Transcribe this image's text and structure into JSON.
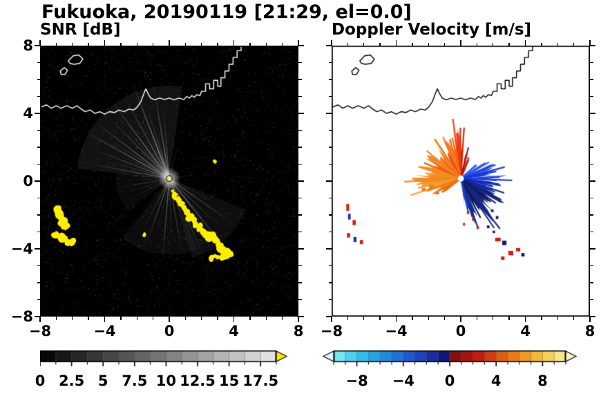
{
  "page": {
    "title": "Fukuoka, 20190119 [21:29, el=0.0]"
  },
  "axes": {
    "minor_step": 1,
    "xticks": {
      "values": [
        -8,
        -4,
        0,
        4,
        8
      ],
      "labels": [
        "−8",
        "−4",
        "0",
        "4",
        "8"
      ]
    },
    "yticks": {
      "values": [
        8,
        4,
        0,
        -4,
        -8
      ],
      "labels": [
        "8",
        "4",
        "0",
        "−4",
        "−8"
      ]
    }
  },
  "coastline": {
    "main": [
      [
        -8,
        4.35
      ],
      [
        -7.6,
        4.5
      ],
      [
        -7.3,
        4.3
      ],
      [
        -7,
        4.45
      ],
      [
        -6.7,
        4.3
      ],
      [
        -6.35,
        4.45
      ],
      [
        -6,
        4.3
      ],
      [
        -5.7,
        4.45
      ],
      [
        -5.45,
        4.25
      ],
      [
        -5.2,
        4.1
      ],
      [
        -4.9,
        4.2
      ],
      [
        -4.6,
        4
      ],
      [
        -4.3,
        4.1
      ],
      [
        -4,
        3.95
      ],
      [
        -3.7,
        4.1
      ],
      [
        -3.4,
        4.05
      ],
      [
        -3.1,
        4.2
      ],
      [
        -2.8,
        4.1
      ],
      [
        -2.5,
        4.25
      ],
      [
        -2.2,
        4.2
      ],
      [
        -2,
        4.35
      ],
      [
        -1.75,
        4.7
      ],
      [
        -1.6,
        5.1
      ],
      [
        -1.45,
        5.45
      ],
      [
        -1.3,
        5.15
      ],
      [
        -1.15,
        4.9
      ],
      [
        -0.9,
        4.8
      ],
      [
        -0.6,
        4.9
      ],
      [
        -0.3,
        4.82
      ],
      [
        0,
        4.9
      ],
      [
        0.3,
        4.8
      ],
      [
        0.6,
        4.9
      ],
      [
        0.9,
        4.82
      ],
      [
        1.1,
        5
      ],
      [
        1.25,
        4.9
      ],
      [
        1.4,
        5.05
      ],
      [
        1.55,
        4.95
      ],
      [
        1.7,
        5.1
      ],
      [
        1.9,
        5.05
      ],
      [
        2,
        5.3
      ],
      [
        2.25,
        5.3
      ],
      [
        2.25,
        5.75
      ],
      [
        2.5,
        5.75
      ],
      [
        2.5,
        5.45
      ],
      [
        2.75,
        5.45
      ],
      [
        2.75,
        5.95
      ],
      [
        3,
        5.95
      ],
      [
        3,
        5.6
      ],
      [
        3.2,
        5.6
      ],
      [
        3.2,
        6.1
      ],
      [
        3.45,
        6.1
      ],
      [
        3.45,
        6.5
      ],
      [
        3.7,
        6.5
      ],
      [
        3.7,
        6.9
      ],
      [
        3.95,
        6.9
      ],
      [
        3.95,
        7.3
      ],
      [
        4.2,
        7.3
      ],
      [
        4.2,
        7.7
      ],
      [
        4.45,
        7.7
      ],
      [
        4.45,
        8
      ]
    ],
    "islands": [
      [
        [
          -6.25,
          7.1
        ],
        [
          -5.95,
          7.4
        ],
        [
          -5.6,
          7.45
        ],
        [
          -5.35,
          7.2
        ],
        [
          -5.55,
          6.95
        ],
        [
          -5.9,
          6.9
        ],
        [
          -6.15,
          6.95
        ]
      ],
      [
        [
          -6.75,
          6.5
        ],
        [
          -6.5,
          6.7
        ],
        [
          -6.3,
          6.55
        ],
        [
          -6.45,
          6.3
        ],
        [
          -6.7,
          6.3
        ]
      ]
    ]
  },
  "chart_data": [
    {
      "id": "snr",
      "type": "heatmap",
      "title": "SNR [dB]",
      "xlabel": "",
      "ylabel": "",
      "xlim": [
        -8,
        8
      ],
      "ylim": [
        -8,
        8
      ],
      "background": "#000000",
      "coast_color": "#ffffff",
      "center": [
        0,
        0.15
      ],
      "colorbar": {
        "range": [
          0,
          18.75
        ],
        "segments": 15,
        "ticks": [
          0,
          2.5,
          5,
          7.5,
          10,
          12.5,
          15,
          17.5
        ],
        "tick_labels": [
          "0",
          "2.5",
          "5",
          "7.5",
          "10",
          "12.5",
          "15",
          "17.5"
        ],
        "minor_step": 1.25,
        "stops": [
          [
            0,
            "#000000"
          ],
          [
            1,
            "#e9e9e9"
          ]
        ],
        "over_arrow_color": "#ffe600"
      },
      "noise": {
        "seed": 1234,
        "count": 3000,
        "max_alpha": 0.3
      },
      "glow_wedges": [
        [
          128,
          46,
          5.6,
          0.1
        ],
        [
          196,
          22,
          3.2,
          0.06
        ],
        [
          262,
          30,
          4.6,
          0.07
        ],
        [
          312,
          26,
          5,
          0.08
        ]
      ],
      "rays": [
        [
          95,
          4.5,
          1.2,
          190,
          0.5
        ],
        [
          100,
          5.8,
          1.5,
          205,
          0.6
        ],
        [
          105,
          3.2,
          1,
          160,
          0.5
        ],
        [
          108,
          5,
          1.2,
          180,
          0.55
        ],
        [
          112,
          6.3,
          1.8,
          215,
          0.7
        ],
        [
          116,
          4,
          1,
          170,
          0.5
        ],
        [
          120,
          5.5,
          1.5,
          200,
          0.6
        ],
        [
          124,
          3.5,
          1,
          150,
          0.45
        ],
        [
          128,
          6,
          1.6,
          210,
          0.65
        ],
        [
          132,
          4.2,
          1.2,
          180,
          0.5
        ],
        [
          136,
          5.2,
          1.4,
          190,
          0.55
        ],
        [
          140,
          3,
          1,
          150,
          0.4
        ],
        [
          144,
          5.8,
          1.5,
          200,
          0.6
        ],
        [
          148,
          4.5,
          1.2,
          175,
          0.5
        ],
        [
          152,
          6.2,
          1.6,
          210,
          0.6
        ],
        [
          156,
          3.8,
          1,
          160,
          0.45
        ],
        [
          160,
          5,
          1.3,
          185,
          0.55
        ],
        [
          165,
          4.2,
          1.1,
          170,
          0.5
        ],
        [
          170,
          5.5,
          1.4,
          190,
          0.55
        ],
        [
          175,
          3.5,
          1,
          155,
          0.45
        ],
        [
          182,
          2.8,
          1,
          140,
          0.4
        ],
        [
          190,
          3.4,
          1.1,
          160,
          0.45
        ],
        [
          198,
          2.5,
          1,
          140,
          0.4
        ],
        [
          207,
          3,
          1,
          150,
          0.4
        ],
        [
          215,
          2.2,
          1,
          130,
          0.35
        ],
        [
          228,
          2,
          1,
          120,
          0.3
        ],
        [
          242,
          3.5,
          1.2,
          160,
          0.45
        ],
        [
          250,
          4.5,
          1.4,
          180,
          0.5
        ],
        [
          258,
          3,
          1,
          150,
          0.4
        ],
        [
          265,
          5,
          1.5,
          190,
          0.55
        ],
        [
          272,
          3.8,
          1.1,
          160,
          0.45
        ],
        [
          280,
          4.6,
          1.3,
          175,
          0.5
        ],
        [
          288,
          3.2,
          1,
          150,
          0.4
        ],
        [
          295,
          5.2,
          1.5,
          190,
          0.55
        ],
        [
          302,
          4,
          1.2,
          165,
          0.45
        ],
        [
          310,
          5.6,
          1.6,
          200,
          0.6
        ],
        [
          318,
          4.4,
          1.2,
          175,
          0.5
        ],
        [
          326,
          5,
          1.4,
          185,
          0.5
        ],
        [
          334,
          3,
          1,
          150,
          0.4
        ],
        [
          8,
          1.8,
          1,
          140,
          0.35
        ],
        [
          30,
          1.5,
          1,
          130,
          0.3
        ],
        [
          75,
          2.5,
          1,
          150,
          0.4
        ]
      ],
      "clutter": {
        "color": "#ffee00",
        "blobs": [
          [
            -6.9,
            -1.7,
            0.28
          ],
          [
            -6.75,
            -2.05,
            0.32
          ],
          [
            -6.55,
            -2.35,
            0.3
          ],
          [
            -6.45,
            -2.65,
            0.24
          ],
          [
            -6.8,
            -2.5,
            0.2
          ],
          [
            -7,
            -3.15,
            0.26
          ],
          [
            -6.65,
            -3.4,
            0.3
          ],
          [
            -6.3,
            -3.55,
            0.26
          ],
          [
            -5.95,
            -3.6,
            0.2
          ],
          [
            0.35,
            -0.85,
            0.18
          ],
          [
            0.55,
            -1.1,
            0.2
          ],
          [
            0.75,
            -1.35,
            0.22
          ],
          [
            0.95,
            -1.6,
            0.2
          ],
          [
            1.1,
            -1.85,
            0.22
          ],
          [
            1.3,
            -2.1,
            0.24
          ],
          [
            1.5,
            -2.3,
            0.2
          ],
          [
            1.65,
            -2.55,
            0.22
          ],
          [
            1.85,
            -2.75,
            0.26
          ],
          [
            2.1,
            -2.95,
            0.22
          ],
          [
            2.35,
            -3.1,
            0.24
          ],
          [
            2.6,
            -3.25,
            0.3
          ],
          [
            2.85,
            -3.45,
            0.26
          ],
          [
            3,
            -3.7,
            0.3
          ],
          [
            3.2,
            -3.95,
            0.28
          ],
          [
            3.45,
            -4.15,
            0.3
          ],
          [
            3.65,
            -4.35,
            0.26
          ],
          [
            3.3,
            -4.5,
            0.22
          ],
          [
            2.9,
            -4.45,
            0.2
          ],
          [
            2.55,
            -4.55,
            0.18
          ],
          [
            2.85,
            1.15,
            0.14
          ],
          [
            -1.55,
            -3.15,
            0.12
          ],
          [
            0.2,
            -0.6,
            0.1
          ]
        ]
      }
    },
    {
      "id": "doppler",
      "type": "heatmap",
      "title": "Doppler Velocity [m/s]",
      "xlabel": "",
      "ylabel": "",
      "xlim": [
        -8,
        8
      ],
      "ylim": [
        -8,
        8
      ],
      "background": "#ffffff",
      "coast_color": "#000000",
      "center": [
        0,
        0.15
      ],
      "colorbar": {
        "range": [
          -10,
          10
        ],
        "segments": 20,
        "ticks": [
          -8,
          -4,
          0,
          4,
          8
        ],
        "tick_labels": [
          "−8",
          "−4",
          "0",
          "4",
          "8"
        ],
        "minor_step": 1,
        "stops": [
          [
            0,
            "#8ceef2"
          ],
          [
            0.1,
            "#3cc8ec"
          ],
          [
            0.2,
            "#2098dc"
          ],
          [
            0.3,
            "#2264d2"
          ],
          [
            0.4,
            "#1c38b4"
          ],
          [
            0.475,
            "#121878"
          ],
          [
            0.5,
            "#6e1010"
          ],
          [
            0.55,
            "#941212"
          ],
          [
            0.625,
            "#c01c14"
          ],
          [
            0.7,
            "#d84e14"
          ],
          [
            0.8,
            "#ec8c1c"
          ],
          [
            0.9,
            "#f4c840"
          ],
          [
            1,
            "#f8f0a0"
          ]
        ],
        "under_arrow_color": "#dbfbfb",
        "over_arrow_color": "#fbf5c8"
      },
      "wedges": [
        [
          88,
          3,
          2.3,
          "#d92408"
        ],
        [
          95,
          4,
          2.7,
          "#f03c04"
        ],
        [
          102,
          3,
          1.9,
          "#f06414"
        ],
        [
          110,
          5,
          2.4,
          "#f4741c"
        ],
        [
          119,
          4,
          1.6,
          "#e84c0c"
        ],
        [
          128,
          5,
          2.1,
          "#f07c14"
        ],
        [
          137,
          4,
          1.5,
          "#f06810"
        ],
        [
          146,
          6,
          2.3,
          "#f48424"
        ],
        [
          155,
          5,
          1.8,
          "#ec5a0c"
        ],
        [
          164,
          6,
          2.5,
          "#f48c1c"
        ],
        [
          173,
          6,
          2,
          "#f09024"
        ],
        [
          183,
          7,
          2.6,
          "#f4861c"
        ],
        [
          194,
          8,
          2.4,
          "#f59a2c"
        ],
        [
          205,
          7,
          1.7,
          "#f07c14"
        ],
        [
          214,
          5,
          1.2,
          "#e86a10"
        ],
        [
          76,
          3,
          1.6,
          "#a81414"
        ],
        [
          66,
          3,
          1.1,
          "#c01c10"
        ],
        [
          40,
          3,
          1.2,
          "#3a63ea"
        ],
        [
          30,
          4,
          1.6,
          "#2f55e8"
        ],
        [
          20,
          4,
          2,
          "#2244e0"
        ],
        [
          10,
          5,
          2.3,
          "#1535d6"
        ],
        [
          0,
          4,
          2.5,
          "#1d41dc"
        ],
        [
          -10,
          5,
          1.9,
          "#0f2bb8"
        ],
        [
          -20,
          5,
          2.3,
          "#132a9e"
        ],
        [
          -30,
          6,
          2.7,
          "#101f7a"
        ],
        [
          -40,
          6,
          2.3,
          "#0d1a66"
        ],
        [
          -50,
          6,
          2.9,
          "#13247f"
        ],
        [
          -60,
          5,
          2.1,
          "#0e1b5e"
        ],
        [
          -70,
          5,
          2.5,
          "#132b8e"
        ],
        [
          -78,
          4,
          1.5,
          "#1c3ec6"
        ]
      ],
      "specks": [
        [
          -7,
          -1.55,
          0.18,
          0.4,
          "#d81c0c"
        ],
        [
          -6.9,
          -2.1,
          0.16,
          0.34,
          "#1230b0"
        ],
        [
          -6.6,
          -2.45,
          0.2,
          0.3,
          "#d81c0c"
        ],
        [
          -6.95,
          -3.2,
          0.2,
          0.26,
          "#d81c0c"
        ],
        [
          -6.55,
          -3.45,
          0.18,
          0.3,
          "#0f2bb8"
        ],
        [
          -6.15,
          -3.6,
          0.2,
          0.24,
          "#d81c0c"
        ],
        [
          2.3,
          -3.45,
          0.34,
          0.22,
          "#d81c0c"
        ],
        [
          2.7,
          -3.65,
          0.26,
          0.26,
          "#0d1a66"
        ],
        [
          3.1,
          -4.25,
          0.3,
          0.26,
          "#d81c0c"
        ],
        [
          3.55,
          -4.05,
          0.26,
          0.2,
          "#d81c0c"
        ],
        [
          3.85,
          -4.35,
          0.2,
          0.2,
          "#0d1a66"
        ],
        [
          2.6,
          -4.55,
          0.22,
          0.2,
          "#d81c0c"
        ],
        [
          -1.8,
          -0.35,
          0.3,
          0.22,
          "#f07c14"
        ],
        [
          -2.3,
          -0.5,
          0.24,
          0.18,
          "#f08424"
        ],
        [
          -1.45,
          -0.7,
          0.2,
          0.16,
          "#e86a10"
        ],
        [
          0.45,
          -1.85,
          0.14,
          0.2,
          "#d81c0c"
        ],
        [
          0.75,
          -2.25,
          0.12,
          0.18,
          "#d81c0c"
        ],
        [
          0.2,
          -2.55,
          0.12,
          0.16,
          "#d81c0c"
        ],
        [
          1.05,
          -2.75,
          0.14,
          0.16,
          "#b01414"
        ],
        [
          1.95,
          -1.75,
          0.16,
          0.16,
          "#13247f"
        ],
        [
          2.25,
          -2.15,
          0.16,
          0.18,
          "#101f7a"
        ],
        [
          1.7,
          -2.7,
          0.16,
          0.16,
          "#0d1a66"
        ],
        [
          2.05,
          -3,
          0.16,
          0.14,
          "#13247f"
        ]
      ]
    }
  ]
}
